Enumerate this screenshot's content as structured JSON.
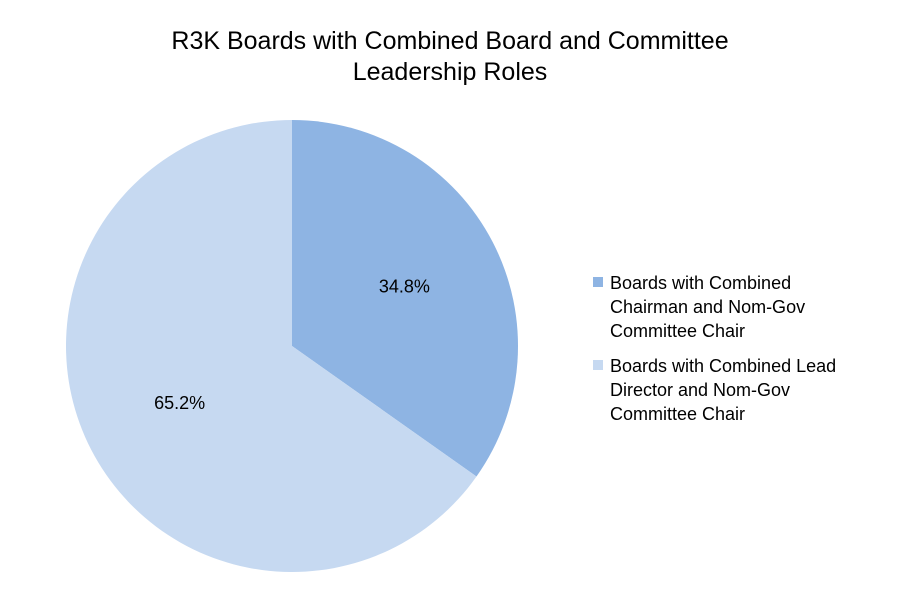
{
  "chart_data": {
    "type": "pie",
    "title": [
      "R3K Boards with Combined Board and Committee",
      "Leadership Roles"
    ],
    "slices": [
      {
        "label": "Boards with Combined Chairman and Nom-Gov Committee Chair",
        "legend_lines": [
          "Boards with Combined",
          "Chairman and Nom-Gov",
          "Committee Chair"
        ],
        "value": 34.8,
        "display": "34.8%",
        "color": "#8EB4E3"
      },
      {
        "label": "Boards with Combined Lead Director and Nom-Gov Committee Chair",
        "legend_lines": [
          "Boards with Combined Lead",
          "Director and Nom-Gov",
          "Committee Chair"
        ],
        "value": 65.2,
        "display": "65.2%",
        "color": "#C6D9F1"
      }
    ],
    "legend_position": "right"
  }
}
